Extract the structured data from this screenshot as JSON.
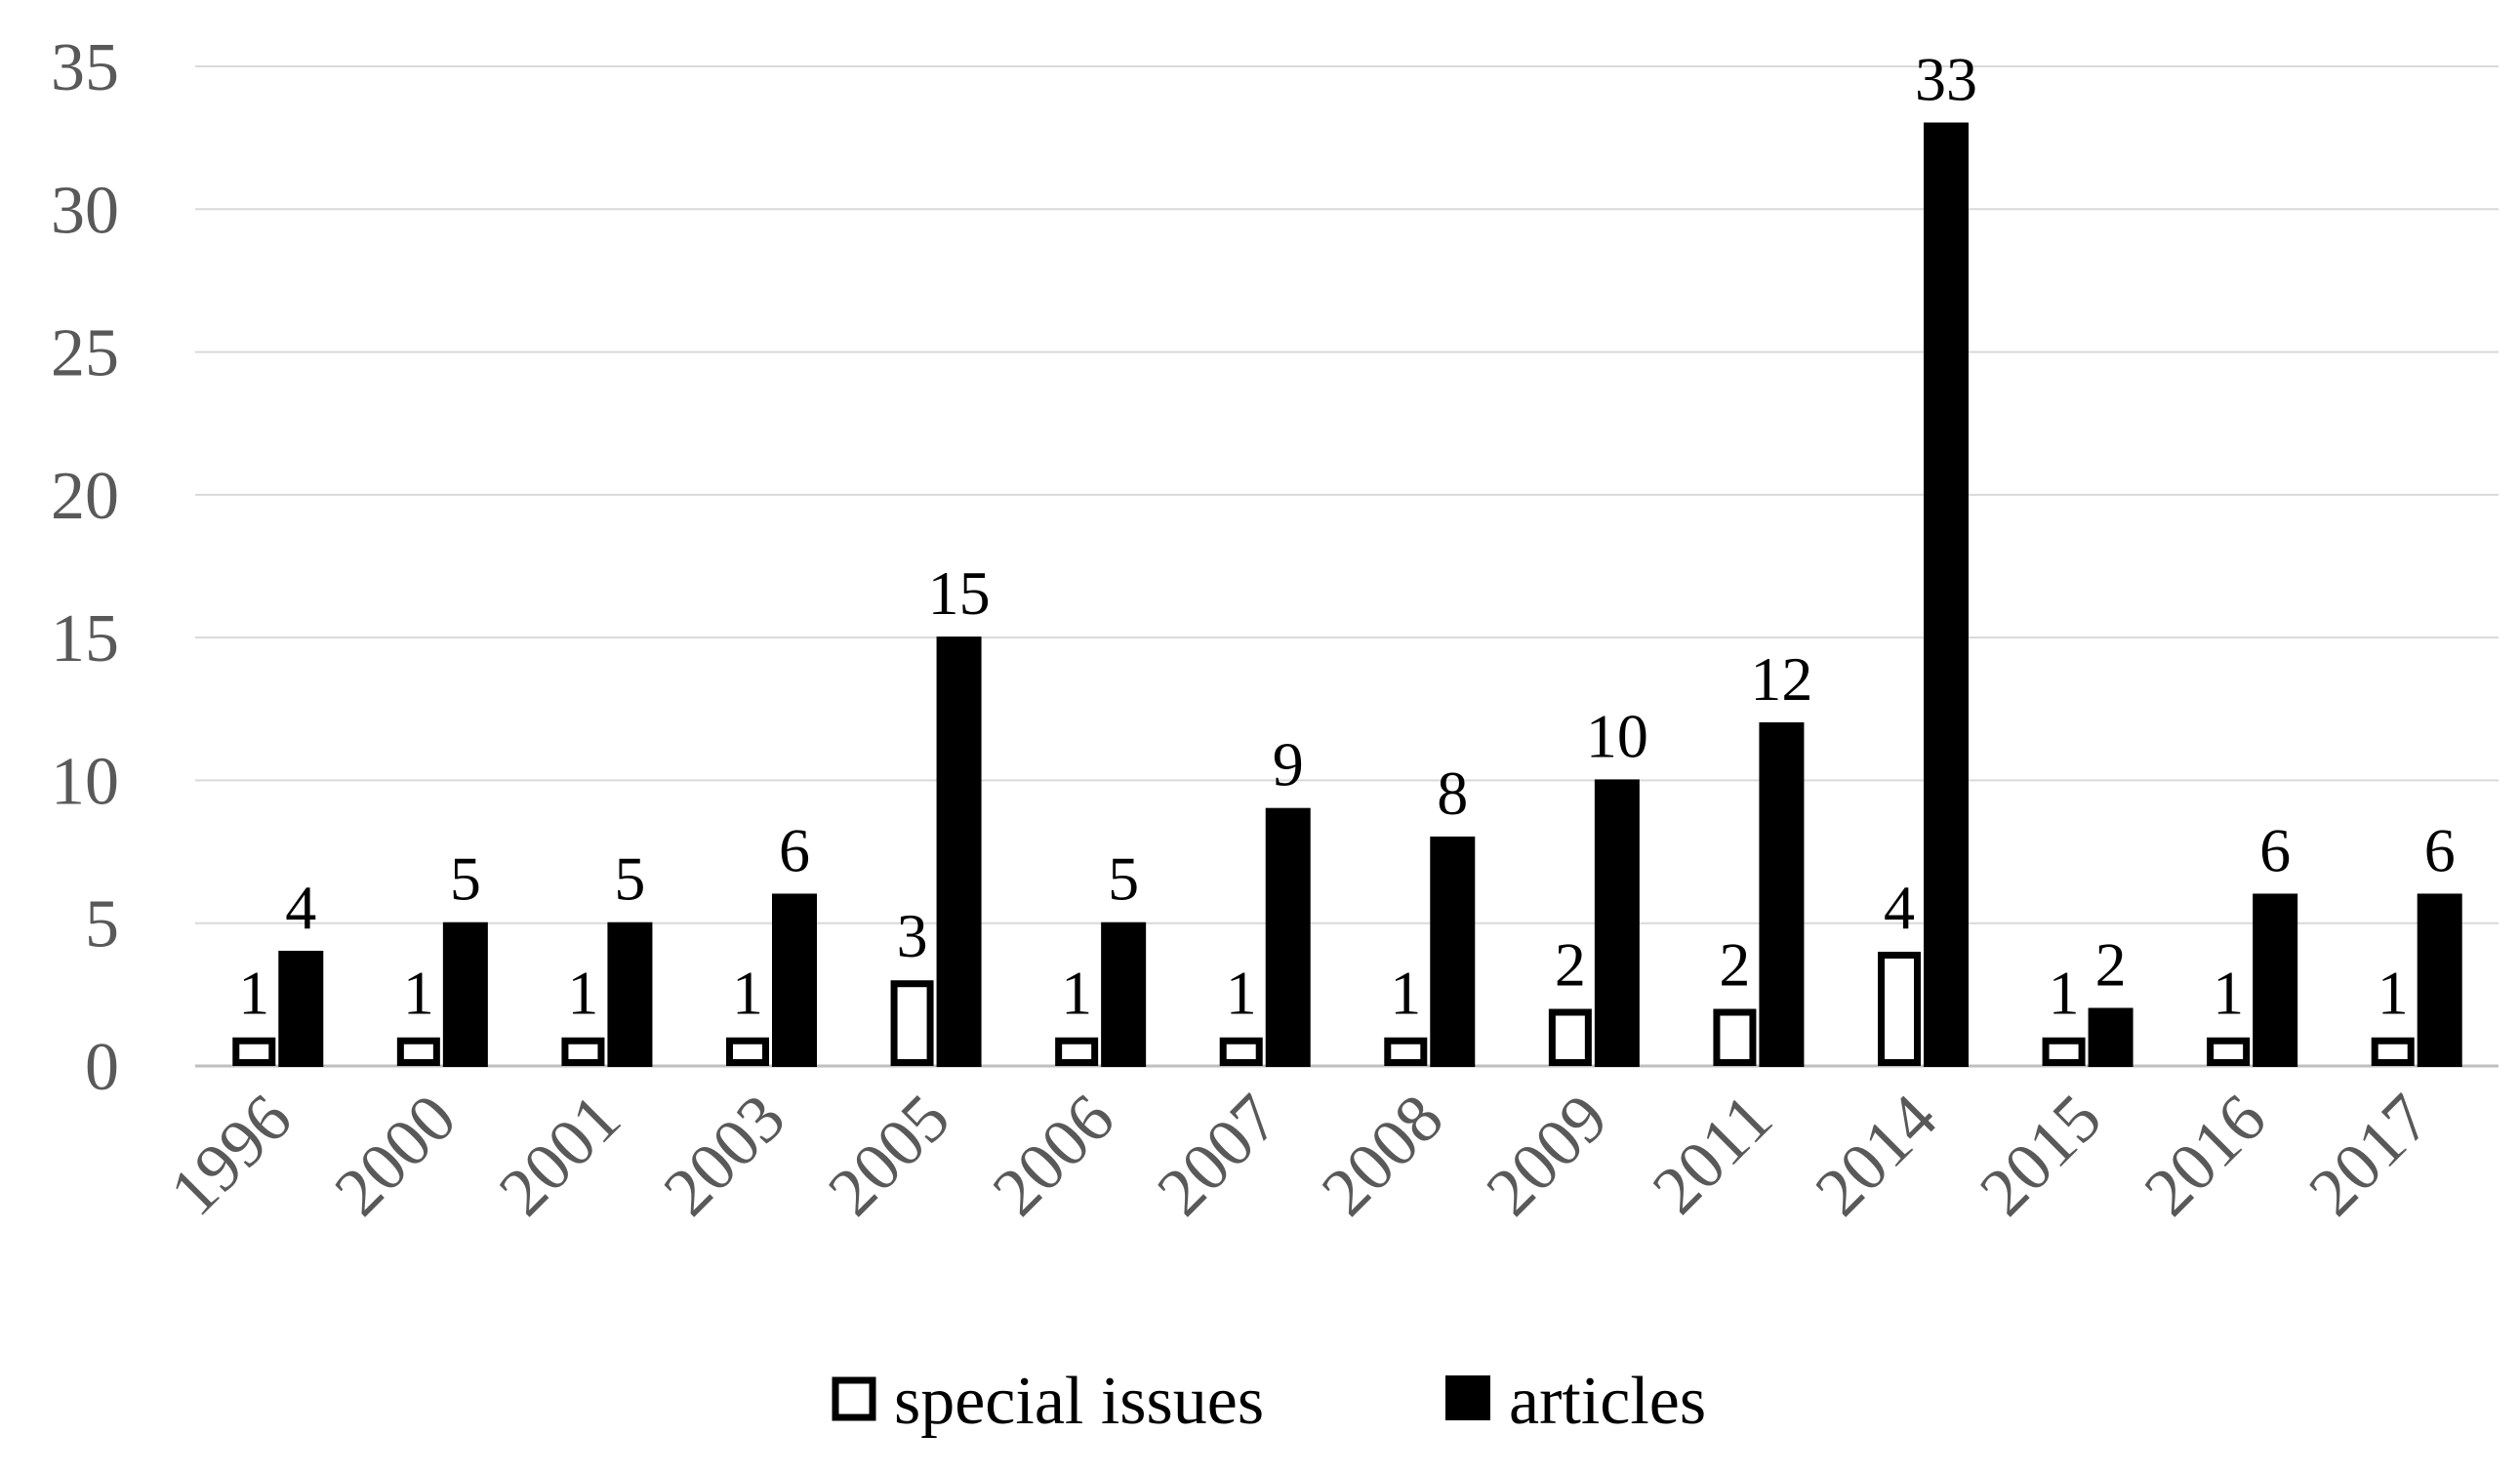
{
  "chart_data": {
    "type": "bar",
    "categories": [
      "1996",
      "2000",
      "2001",
      "2003",
      "2005",
      "2006",
      "2007",
      "2008",
      "2009",
      "2011",
      "2014",
      "2015",
      "2016",
      "2017"
    ],
    "series": [
      {
        "name": "special issues",
        "color": "#ffffff",
        "stroke": "#000000",
        "values": [
          1,
          1,
          1,
          1,
          3,
          1,
          1,
          1,
          2,
          2,
          4,
          1,
          1,
          1
        ]
      },
      {
        "name": "articles",
        "color": "#000000",
        "stroke": "#000000",
        "values": [
          4,
          5,
          5,
          6,
          15,
          5,
          9,
          8,
          10,
          12,
          33,
          2,
          6,
          6
        ]
      }
    ],
    "yticks": [
      "0",
      "5",
      "10",
      "15",
      "20",
      "25",
      "30",
      "35"
    ],
    "ylim": [
      0,
      35
    ],
    "grid": true,
    "data_labels": true,
    "legend_position": "bottom"
  }
}
